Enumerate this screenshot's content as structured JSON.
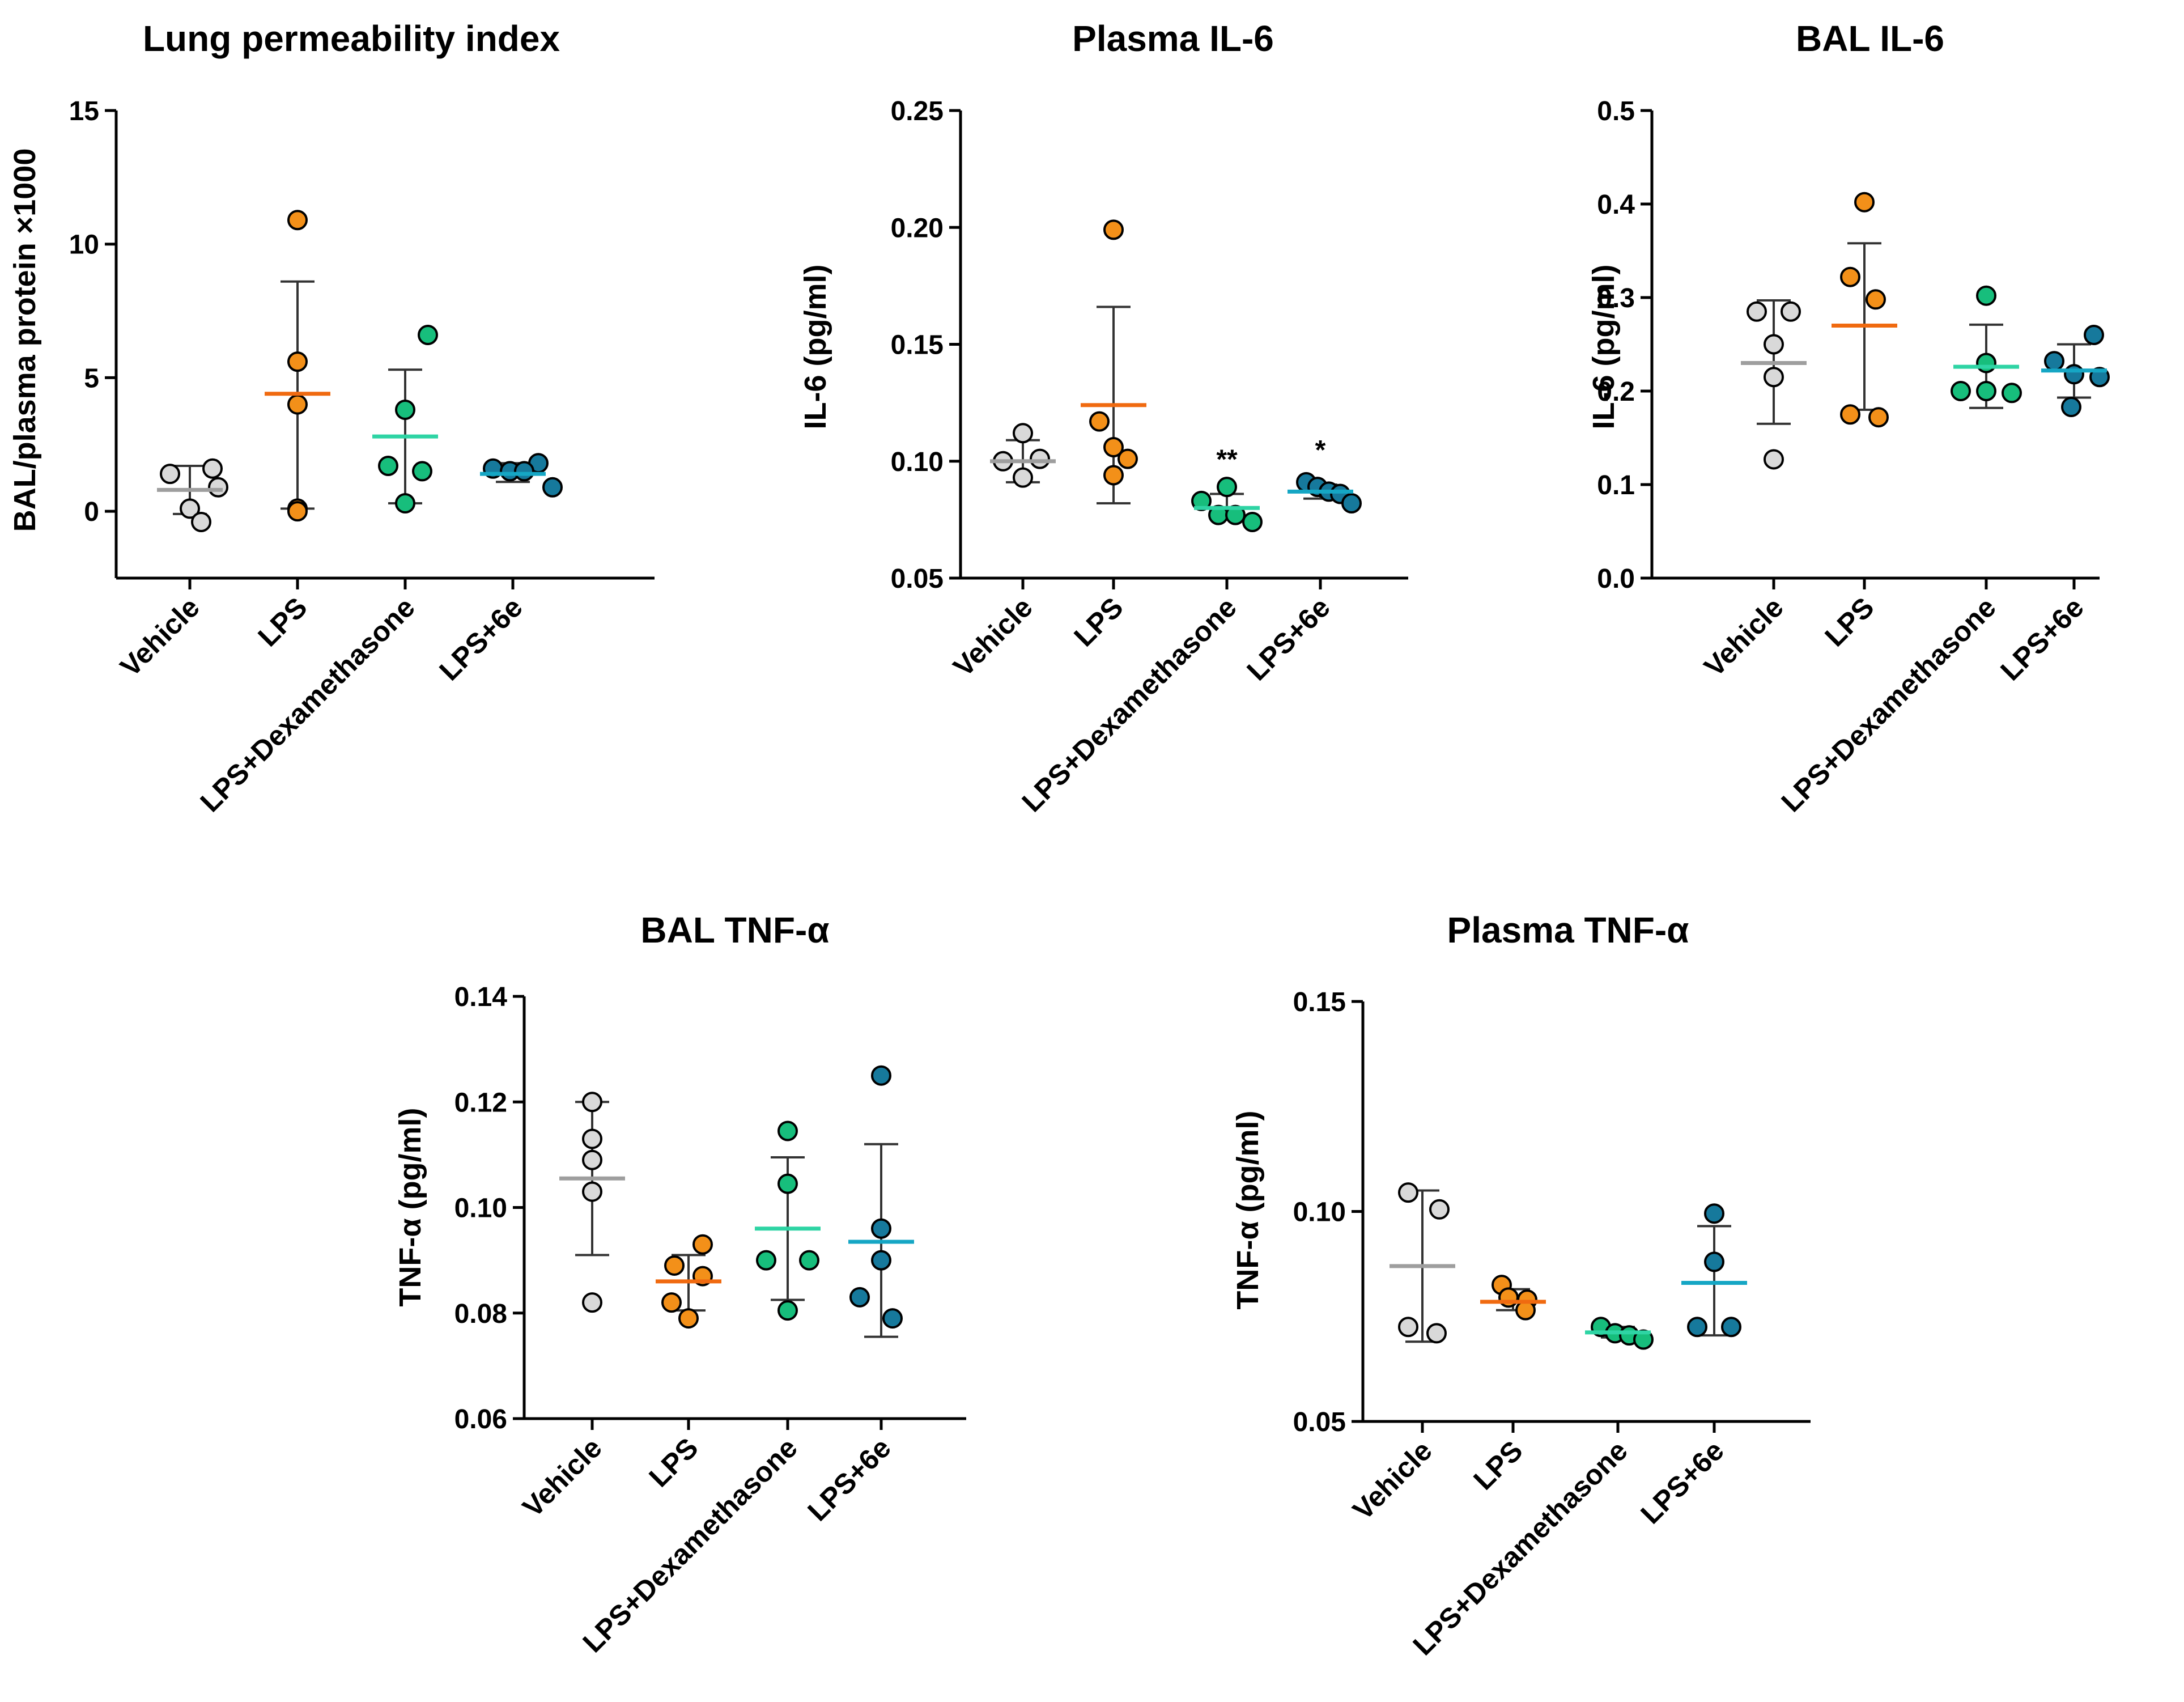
{
  "colors": {
    "Vehicle": "#d9d9d9",
    "LPS": "#f39019",
    "LPS+Dexamethasone": "#17be7c",
    "LPS+6e": "#16799c"
  },
  "mean_colors": {
    "Vehicle": "#9e9e9e",
    "LPS": "#f06a10",
    "LPS+Dexamethasone": "#2ed4a4",
    "LPS+6e": "#15a6c4"
  },
  "chart_data": [
    {
      "type": "scatter",
      "title": "Lung permeability index",
      "ylabel": "BAL/plasma protein ×1000",
      "categories": [
        "Vehicle",
        "LPS",
        "LPS+Dexamethasone",
        "LPS+6e"
      ],
      "ylim": [
        -2.5,
        15
      ],
      "yticks": [
        0,
        5,
        10,
        15
      ],
      "yticklabels": [
        "0",
        "5",
        "10",
        "15"
      ],
      "groups": [
        {
          "points": [
            1.4,
            1.6,
            0.9,
            0.1,
            -0.4
          ],
          "mean": 0.8,
          "upper": 1.7,
          "lower": -0.1
        },
        {
          "points": [
            10.9,
            5.6,
            4.0,
            0.1,
            0.0
          ],
          "mean": 4.4,
          "upper": 8.6,
          "lower": 0.1
        },
        {
          "points": [
            6.6,
            3.8,
            1.7,
            1.5,
            0.3
          ],
          "mean": 2.8,
          "upper": 5.3,
          "lower": 0.3
        },
        {
          "points": [
            1.6,
            1.5,
            1.8,
            1.5,
            0.9
          ],
          "mean": 1.4,
          "upper": 1.8,
          "lower": 1.1
        }
      ],
      "significance": [
        "",
        "",
        "",
        ""
      ]
    },
    {
      "type": "scatter",
      "title": "Plasma IL-6",
      "ylabel": "IL-6 (pg/ml)",
      "categories": [
        "Vehicle",
        "LPS",
        "LPS+Dexamethasone",
        "LPS+6e"
      ],
      "ylim": [
        0.05,
        0.25
      ],
      "yticks": [
        0.05,
        0.1,
        0.15,
        0.2,
        0.25
      ],
      "yticklabels": [
        "0.05",
        "0.10",
        "0.15",
        "0.20",
        "0.25"
      ],
      "groups": [
        {
          "points": [
            0.112,
            0.1,
            0.101,
            0.093
          ],
          "mean": 0.1,
          "upper": 0.109,
          "lower": 0.091
        },
        {
          "points": [
            0.199,
            0.117,
            0.101,
            0.106,
            0.094
          ],
          "mean": 0.124,
          "upper": 0.166,
          "lower": 0.082
        },
        {
          "points": [
            0.089,
            0.083,
            0.077,
            0.077,
            0.074
          ],
          "mean": 0.08,
          "upper": 0.086,
          "lower": 0.075
        },
        {
          "points": [
            0.091,
            0.089,
            0.087,
            0.086,
            0.082
          ],
          "mean": 0.087,
          "upper": 0.09,
          "lower": 0.084
        }
      ],
      "significance": [
        "",
        "",
        "**",
        "*"
      ]
    },
    {
      "type": "scatter",
      "title": "BAL IL-6",
      "ylabel": "IL-6 (pg/ml)",
      "categories": [
        "Vehicle",
        "LPS",
        "LPS+Dexamethasone",
        "LPS+6e"
      ],
      "ylim": [
        0,
        0.5
      ],
      "yticks": [
        0,
        0.1,
        0.2,
        0.3,
        0.4,
        0.5
      ],
      "yticklabels": [
        "0.0",
        "0.1",
        "0.2",
        "0.3",
        "0.4",
        "0.5"
      ],
      "groups": [
        {
          "points": [
            0.285,
            0.285,
            0.25,
            0.215,
            0.127
          ],
          "mean": 0.23,
          "upper": 0.297,
          "lower": 0.165
        },
        {
          "points": [
            0.402,
            0.322,
            0.298,
            0.175,
            0.172
          ],
          "mean": 0.27,
          "upper": 0.358,
          "lower": 0.18
        },
        {
          "points": [
            0.302,
            0.23,
            0.2,
            0.2,
            0.198
          ],
          "mean": 0.226,
          "upper": 0.271,
          "lower": 0.182
        },
        {
          "points": [
            0.26,
            0.232,
            0.218,
            0.215,
            0.183
          ],
          "mean": 0.222,
          "upper": 0.25,
          "lower": 0.193
        }
      ],
      "significance": [
        "",
        "",
        "",
        ""
      ]
    },
    {
      "type": "scatter",
      "title": "BAL TNF-α",
      "ylabel": "TNF-α (pg/ml)",
      "categories": [
        "Vehicle",
        "LPS",
        "LPS+Dexamethasone",
        "LPS+6e"
      ],
      "ylim": [
        0.06,
        0.14
      ],
      "yticks": [
        0.06,
        0.08,
        0.1,
        0.12,
        0.14
      ],
      "yticklabels": [
        "0.06",
        "0.08",
        "0.10",
        "0.12",
        "0.14"
      ],
      "groups": [
        {
          "points": [
            0.12,
            0.113,
            0.109,
            0.103,
            0.082
          ],
          "mean": 0.1055,
          "upper": 0.12,
          "lower": 0.091
        },
        {
          "points": [
            0.093,
            0.089,
            0.087,
            0.082,
            0.079
          ],
          "mean": 0.086,
          "upper": 0.091,
          "lower": 0.0805
        },
        {
          "points": [
            0.1145,
            0.1045,
            0.09,
            0.09,
            0.0805
          ],
          "mean": 0.096,
          "upper": 0.1095,
          "lower": 0.0825
        },
        {
          "points": [
            0.125,
            0.096,
            0.09,
            0.083,
            0.079
          ],
          "mean": 0.0935,
          "upper": 0.112,
          "lower": 0.0755
        }
      ],
      "significance": [
        "",
        "",
        "",
        ""
      ]
    },
    {
      "type": "scatter",
      "title": "Plasma TNF-α",
      "ylabel": "TNF-α (pg/ml)",
      "categories": [
        "Vehicle",
        "LPS",
        "LPS+Dexamethasone",
        "LPS+6e"
      ],
      "ylim": [
        0.05,
        0.15
      ],
      "yticks": [
        0.05,
        0.1,
        0.15
      ],
      "yticklabels": [
        "0.05",
        "0.10",
        "0.15"
      ],
      "groups": [
        {
          "points": [
            0.1045,
            0.1005,
            0.0725,
            0.071
          ],
          "mean": 0.087,
          "upper": 0.105,
          "lower": 0.069
        },
        {
          "points": [
            0.0825,
            0.079,
            0.0795,
            0.0765
          ],
          "mean": 0.0785,
          "upper": 0.0815,
          "lower": 0.0765
        },
        {
          "points": [
            0.0725,
            0.071,
            0.0705,
            0.0695
          ],
          "mean": 0.0712,
          "upper": 0.0725,
          "lower": 0.07
        },
        {
          "points": [
            0.0995,
            0.088,
            0.0725,
            0.0725
          ],
          "mean": 0.083,
          "upper": 0.0965,
          "lower": 0.0705
        }
      ],
      "significance": [
        "",
        "",
        "",
        ""
      ]
    }
  ]
}
